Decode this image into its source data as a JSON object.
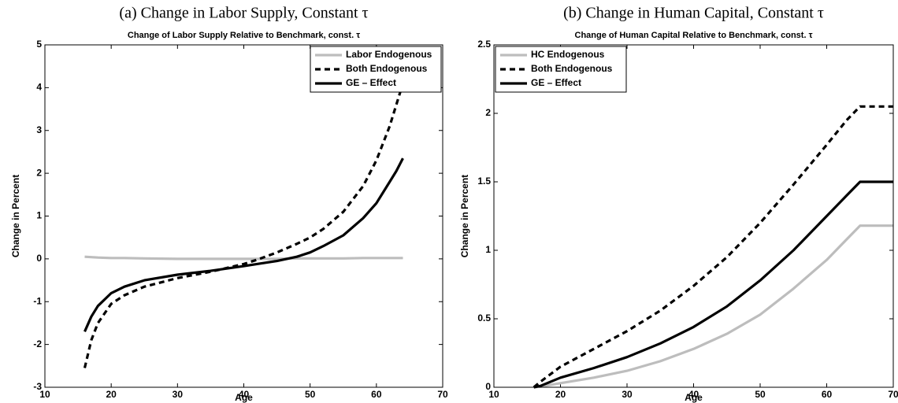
{
  "chart_data": [
    {
      "type": "line",
      "caption": "(a) Change in Labor Supply, Constant τ",
      "title": "Change of Labor Supply Relative to Benchmark, const. τ",
      "xlabel": "Age",
      "ylabel": "Change in Percent",
      "xlim": [
        10,
        70
      ],
      "xticks": [
        10,
        20,
        30,
        40,
        50,
        60,
        70
      ],
      "ylim": [
        -3,
        5
      ],
      "yticks": [
        -3,
        -2,
        -1,
        0,
        1,
        2,
        3,
        4,
        5
      ],
      "legend": "upper right",
      "x": [
        16,
        17,
        18,
        20,
        22,
        25,
        30,
        35,
        40,
        42,
        45,
        48,
        50,
        52,
        55,
        58,
        60,
        62,
        63,
        64
      ],
      "series": [
        {
          "name": "Labor Endogenous",
          "color": "#bdbdbd",
          "linestyle": "solid",
          "values": [
            0.05,
            0.04,
            0.03,
            0.02,
            0.02,
            0.01,
            0.0,
            0.0,
            0.0,
            0.0,
            0.0,
            0.01,
            0.01,
            0.01,
            0.01,
            0.02,
            0.02,
            0.02,
            0.02,
            0.02
          ]
        },
        {
          "name": "Both Endogenous",
          "color": "#000000",
          "linestyle": "dashed",
          "values": [
            -2.55,
            -1.9,
            -1.5,
            -1.05,
            -0.85,
            -0.65,
            -0.45,
            -0.3,
            -0.12,
            -0.02,
            0.15,
            0.35,
            0.5,
            0.7,
            1.1,
            1.7,
            2.3,
            3.1,
            3.6,
            4.1
          ]
        },
        {
          "name": "GE – Effect",
          "color": "#000000",
          "linestyle": "solid",
          "values": [
            -1.7,
            -1.35,
            -1.1,
            -0.8,
            -0.65,
            -0.5,
            -0.37,
            -0.28,
            -0.17,
            -0.12,
            -0.05,
            0.05,
            0.15,
            0.3,
            0.55,
            0.95,
            1.3,
            1.8,
            2.05,
            2.35
          ]
        }
      ]
    },
    {
      "type": "line",
      "caption": "(b) Change in Human Capital, Constant τ",
      "title": "Change of Human Capital Relative to Benchmark, const. τ",
      "xlabel": "Age",
      "ylabel": "Change in Percent",
      "xlim": [
        10,
        70
      ],
      "xticks": [
        10,
        20,
        30,
        40,
        50,
        60,
        70
      ],
      "ylim": [
        0,
        2.5
      ],
      "yticks": [
        0,
        0.5,
        1,
        1.5,
        2,
        2.5
      ],
      "legend": "upper left",
      "x": [
        16,
        17,
        20,
        25,
        30,
        35,
        40,
        45,
        50,
        55,
        60,
        63,
        65,
        70
      ],
      "series": [
        {
          "name": "HC Endogenous",
          "color": "#bdbdbd",
          "linestyle": "solid",
          "values": [
            0,
            0.005,
            0.03,
            0.07,
            0.12,
            0.19,
            0.28,
            0.39,
            0.53,
            0.72,
            0.93,
            1.08,
            1.18,
            1.18
          ]
        },
        {
          "name": "Both Endogenous",
          "color": "#000000",
          "linestyle": "dashed",
          "values": [
            0,
            0.04,
            0.15,
            0.28,
            0.41,
            0.56,
            0.74,
            0.95,
            1.2,
            1.48,
            1.77,
            1.95,
            2.05,
            2.05
          ]
        },
        {
          "name": "GE – Effect",
          "color": "#000000",
          "linestyle": "solid",
          "values": [
            0,
            0.01,
            0.07,
            0.14,
            0.22,
            0.32,
            0.44,
            0.59,
            0.78,
            1.0,
            1.25,
            1.4,
            1.5,
            1.5
          ]
        }
      ]
    }
  ]
}
